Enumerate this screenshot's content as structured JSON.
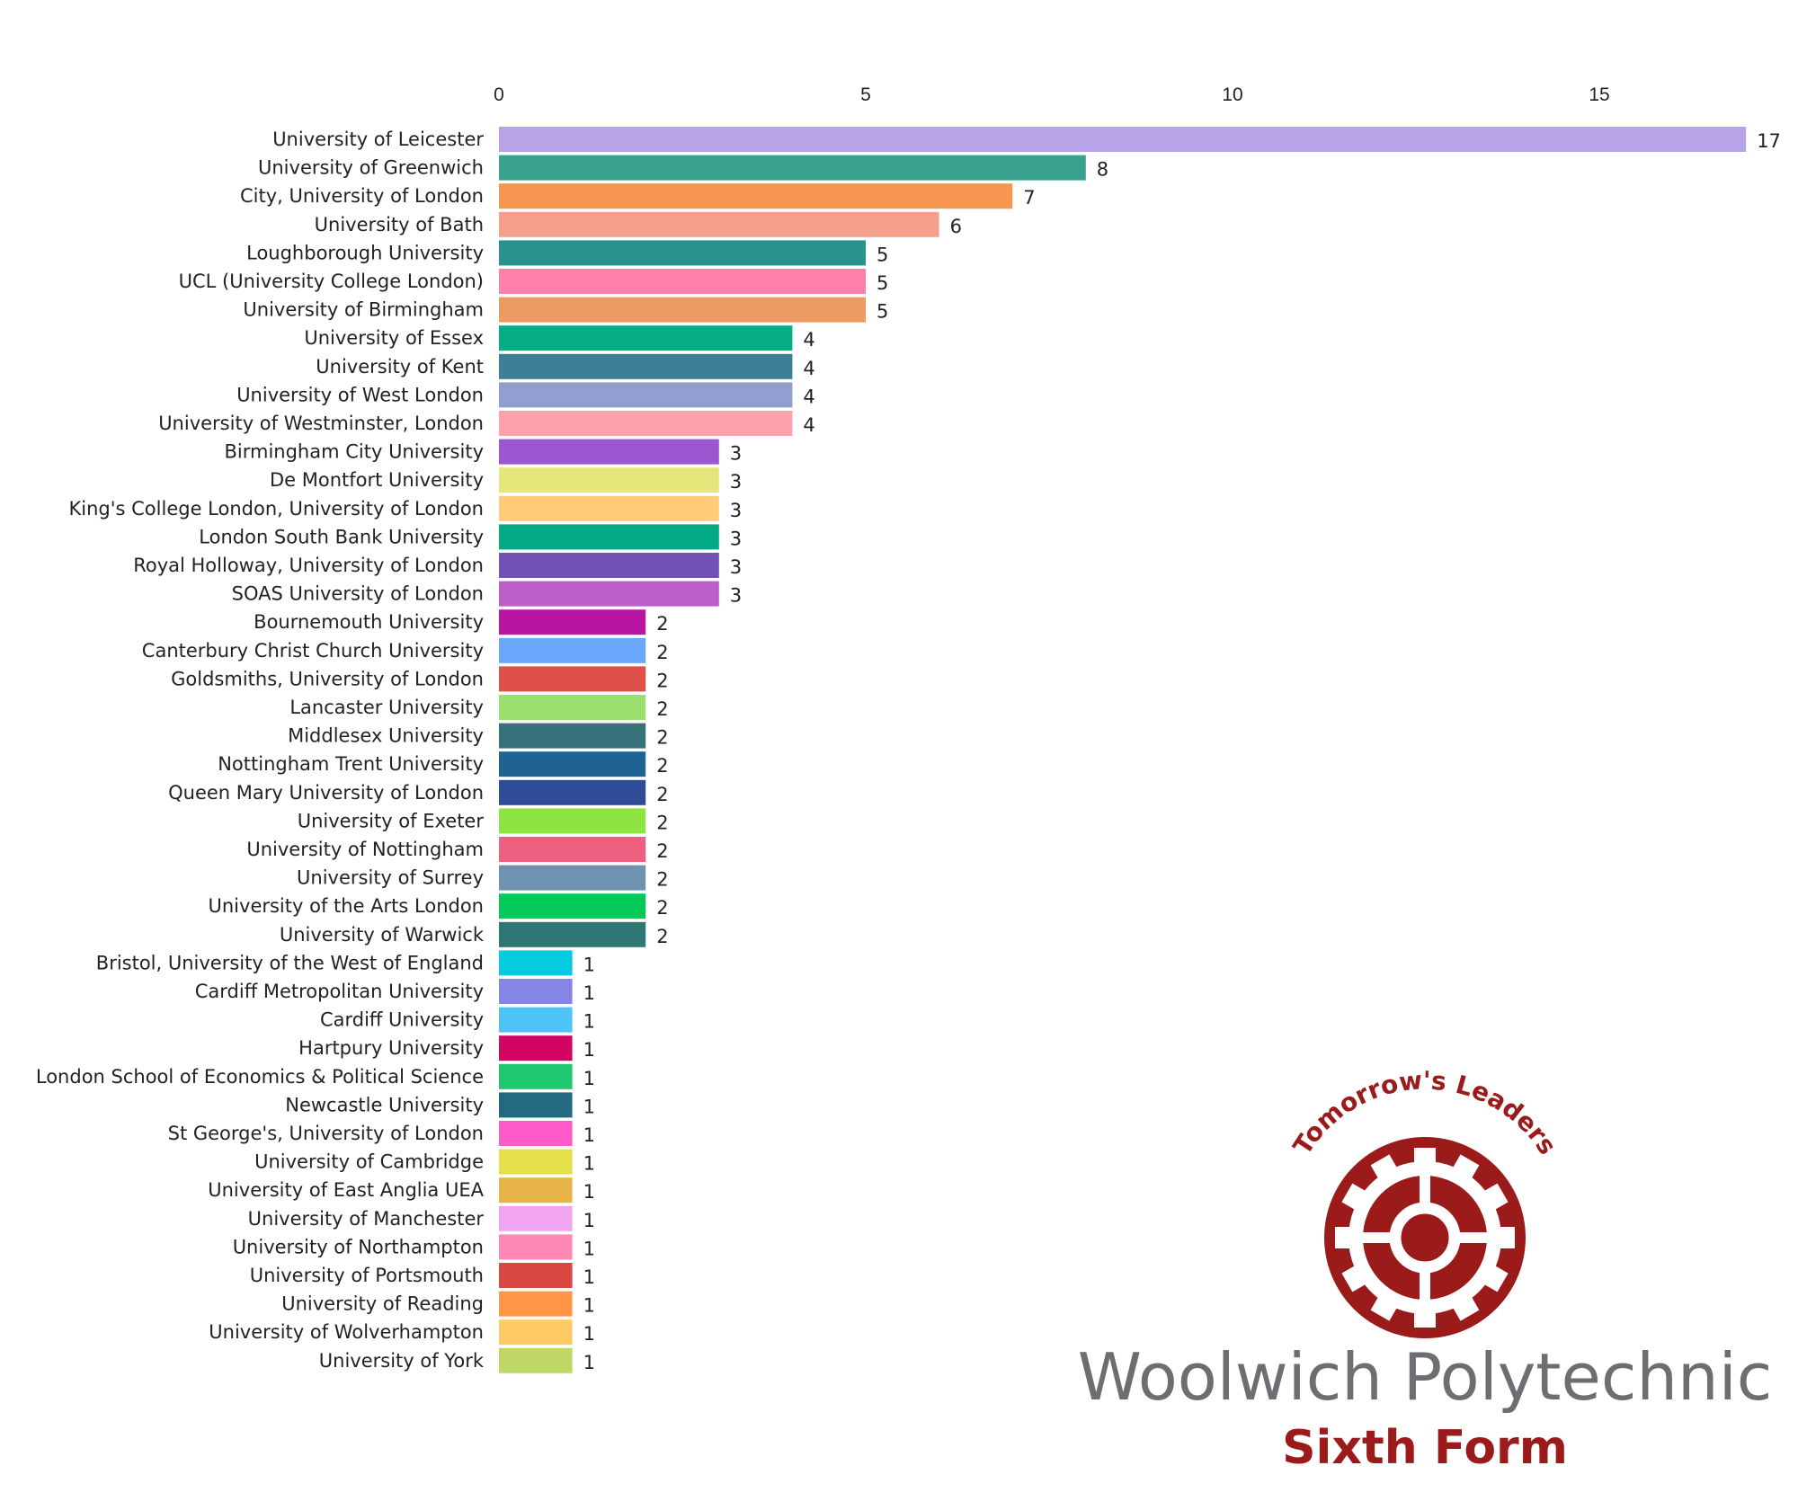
{
  "chart_data": {
    "type": "bar",
    "orientation": "horizontal",
    "xlim": [
      0,
      17
    ],
    "xticks": [
      0,
      5,
      10,
      15
    ],
    "x_axis_position": "top",
    "grid": false,
    "categories": [
      "University of Leicester",
      "University of Greenwich",
      "City, University of London",
      "University of Bath",
      "Loughborough University",
      "UCL (University College London)",
      "University of Birmingham",
      "University of Essex",
      "University of Kent",
      "University of West London",
      "University of Westminster, London",
      "Birmingham City University",
      "De Montfort University",
      "King's College London, University of London",
      "London South Bank University",
      "Royal Holloway, University of London",
      "SOAS University of London",
      "Bournemouth University",
      "Canterbury Christ Church University",
      "Goldsmiths, University of London",
      "Lancaster University",
      "Middlesex University",
      "Nottingham Trent University",
      "Queen Mary University of London",
      "University of Exeter",
      "University of Nottingham",
      "University of Surrey",
      "University of the Arts London",
      "University of Warwick",
      "Bristol, University of the West of England",
      "Cardiff Metropolitan University",
      "Cardiff University",
      "Hartpury University",
      "London School of Economics & Political Science",
      "Newcastle University",
      "St George's, University of London",
      "University of Cambridge",
      "University of East Anglia UEA",
      "University of Manchester",
      "University of Northampton",
      "University of Portsmouth",
      "University of Reading",
      "University of Wolverhampton",
      "University of York"
    ],
    "values": [
      17,
      8,
      7,
      6,
      5,
      5,
      5,
      4,
      4,
      4,
      4,
      3,
      3,
      3,
      3,
      3,
      3,
      2,
      2,
      2,
      2,
      2,
      2,
      2,
      2,
      2,
      2,
      2,
      2,
      1,
      1,
      1,
      1,
      1,
      1,
      1,
      1,
      1,
      1,
      1,
      1,
      1,
      1,
      1
    ],
    "colors": [
      "#b8a2e8",
      "#3aa18e",
      "#f69651",
      "#f4a08d",
      "#27938a",
      "#ff7fab",
      "#ec9a60",
      "#05ad85",
      "#3d7f96",
      "#919fd0",
      "#fda2ad",
      "#9b57cf",
      "#e4e67a",
      "#ffcb78",
      "#04a986",
      "#7152b4",
      "#bc5ec8",
      "#b816a2",
      "#69a8fa",
      "#de5048",
      "#9ddf6e",
      "#35727a",
      "#1f6294",
      "#2e4d96",
      "#8de340",
      "#ef6080",
      "#7092b1",
      "#05c958",
      "#2f7775",
      "#04cbdf",
      "#8585e5",
      "#4ec3f8",
      "#d20562",
      "#1ec86f",
      "#236a80",
      "#ff5bc8",
      "#e3e04a",
      "#e6b348",
      "#f0a4f2",
      "#fd88b3",
      "#d94743",
      "#ff9545",
      "#fdca63",
      "#bfd865"
    ]
  },
  "logo": {
    "tagline": "Tomorrow's Leaders",
    "name": "Woolwich Polytechnic",
    "subtitle": "Sixth Form",
    "color": "#9b1b1b",
    "name_color": "#6e6e72"
  }
}
